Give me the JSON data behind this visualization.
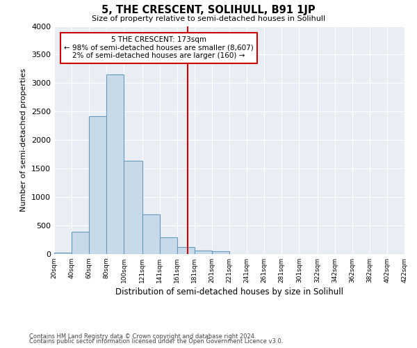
{
  "title": "5, THE CRESCENT, SOLIHULL, B91 1JP",
  "subtitle": "Size of property relative to semi-detached houses in Solihull",
  "xlabel": "Distribution of semi-detached houses by size in Solihull",
  "ylabel": "Number of semi-detached properties",
  "bar_color": "#c8daea",
  "bar_edge_color": "#6699bb",
  "vline_x": 173,
  "vline_color": "#cc0000",
  "annotation_title": "5 THE CRESCENT: 173sqm",
  "annotation_line1": "← 98% of semi-detached houses are smaller (8,607)",
  "annotation_line2": "2% of semi-detached houses are larger (160) →",
  "annotation_box_color": "#cc0000",
  "footnote1": "Contains HM Land Registry data © Crown copyright and database right 2024.",
  "footnote2": "Contains public sector information licensed under the Open Government Licence v3.0.",
  "bin_edges": [
    20,
    40,
    60,
    80,
    100,
    121,
    141,
    161,
    181,
    201,
    221,
    241,
    261,
    281,
    301,
    322,
    342,
    362,
    382,
    402,
    422
  ],
  "bin_counts": [
    30,
    390,
    2420,
    3150,
    1640,
    700,
    295,
    120,
    55,
    50,
    0,
    0,
    0,
    0,
    0,
    0,
    0,
    0,
    0,
    0
  ],
  "ylim": [
    0,
    4000
  ],
  "xlim": [
    20,
    422
  ],
  "background_color": "#ffffff",
  "plot_bg_color": "#e8eef4",
  "grid_color": "#ffffff"
}
